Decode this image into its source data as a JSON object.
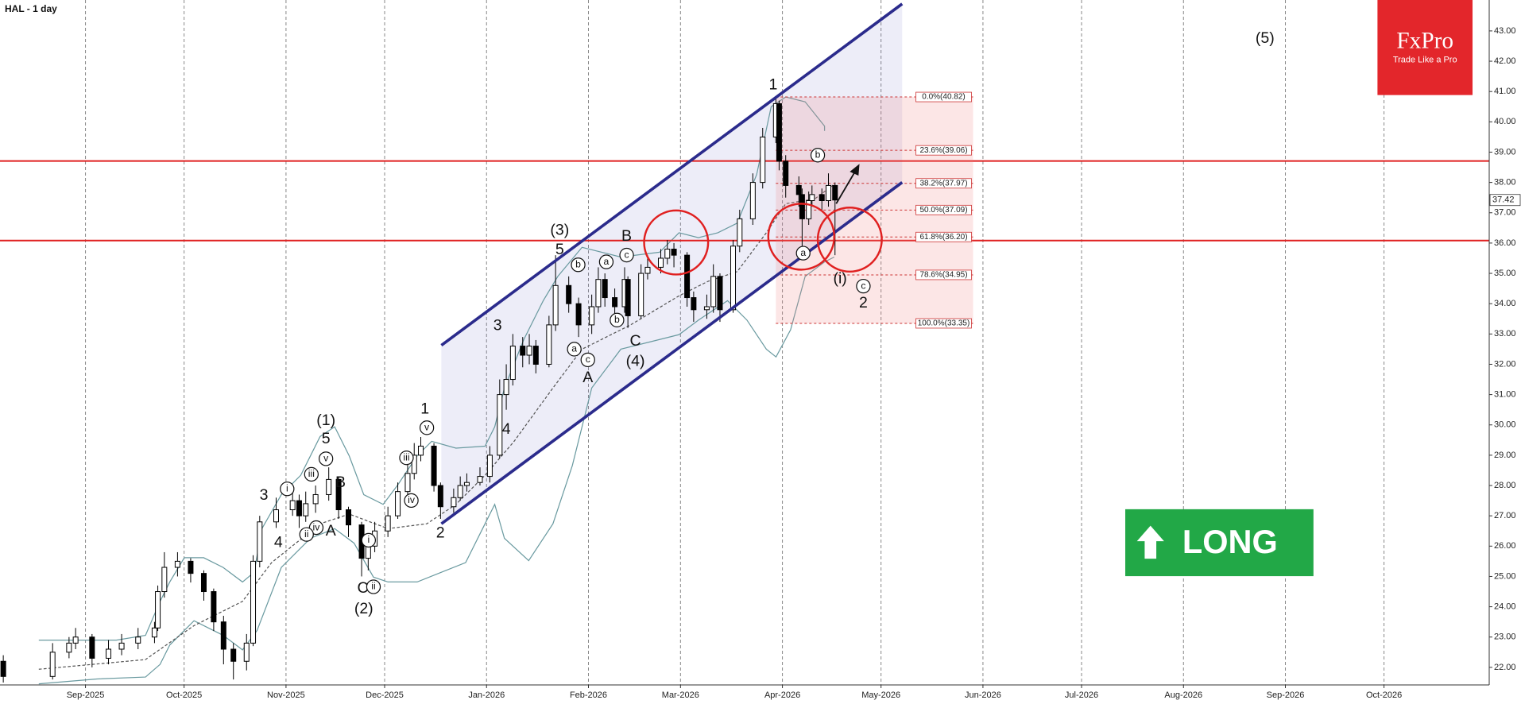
{
  "chart_data": {
    "type": "candlestick",
    "title": "HAL - 1 day",
    "x": [
      "2025-08-07",
      "2025-08-22",
      "2025-08-27",
      "2025-08-29",
      "2025-09-03",
      "2025-09-08",
      "2025-09-12",
      "2025-09-17",
      "2025-09-22",
      "2025-09-23",
      "2025-09-25",
      "2025-09-29",
      "2025-10-03",
      "2025-10-07",
      "2025-10-10",
      "2025-10-13",
      "2025-10-16",
      "2025-10-20",
      "2025-10-22",
      "2025-10-24",
      "2025-10-29",
      "2025-11-03",
      "2025-11-05",
      "2025-11-07",
      "2025-11-10",
      "2025-11-14",
      "2025-11-17",
      "2025-11-20",
      "2025-11-24",
      "2025-11-26",
      "2025-11-28",
      "2025-12-02",
      "2025-12-05",
      "2025-12-08",
      "2025-12-10",
      "2025-12-12",
      "2025-12-16",
      "2025-12-18",
      "2025-12-22",
      "2025-12-24",
      "2025-12-26",
      "2025-12-30",
      "2026-01-02",
      "2026-01-05",
      "2026-01-07",
      "2026-01-09",
      "2026-01-12",
      "2026-01-14",
      "2026-01-16",
      "2026-01-20",
      "2026-01-22",
      "2026-01-26",
      "2026-01-29",
      "2026-02-02",
      "2026-02-04",
      "2026-02-06",
      "2026-02-09",
      "2026-02-12",
      "2026-02-13",
      "2026-02-17",
      "2026-02-19",
      "2026-02-23",
      "2026-02-25",
      "2026-02-27",
      "2026-03-03",
      "2026-03-05",
      "2026-03-09",
      "2026-03-11",
      "2026-03-13",
      "2026-03-17",
      "2026-03-19",
      "2026-03-23",
      "2026-03-26",
      "2026-03-30",
      "2026-03-31",
      "2026-04-02",
      "2026-04-06",
      "2026-04-07",
      "2026-04-09",
      "2026-04-10",
      "2026-04-13",
      "2026-04-15",
      "2026-04-17"
    ],
    "open": [
      22.2,
      21.7,
      22.5,
      22.8,
      23.0,
      22.3,
      22.6,
      22.8,
      23.0,
      23.3,
      24.5,
      25.3,
      25.5,
      25.1,
      24.5,
      23.5,
      22.6,
      22.2,
      22.8,
      25.5,
      26.8,
      27.2,
      27.5,
      27.0,
      27.4,
      27.7,
      28.2,
      27.2,
      26.7,
      25.6,
      26.0,
      26.5,
      27.0,
      27.8,
      28.4,
      29.0,
      29.3,
      28.0,
      27.3,
      27.6,
      28.0,
      28.1,
      28.3,
      29.0,
      31.0,
      31.5,
      32.6,
      32.3,
      32.6,
      32.0,
      33.3,
      34.6,
      34.0,
      33.3,
      33.9,
      34.8,
      34.2,
      33.9,
      34.8,
      33.6,
      35.0,
      35.2,
      35.5,
      35.8,
      35.6,
      34.2,
      33.8,
      33.9,
      34.9,
      33.8,
      35.9,
      36.8,
      38.0,
      39.5,
      40.6,
      38.7,
      37.9,
      37.6,
      36.8,
      37.4,
      37.6,
      37.4,
      37.9
    ],
    "high": [
      22.4,
      22.8,
      23.0,
      23.3,
      23.1,
      22.9,
      23.1,
      23.3,
      23.5,
      24.7,
      25.8,
      25.8,
      25.6,
      25.2,
      24.6,
      23.7,
      22.8,
      23.1,
      25.7,
      27.0,
      27.6,
      28.0,
      27.7,
      27.8,
      28.0,
      28.6,
      28.3,
      27.3,
      26.8,
      26.3,
      26.8,
      27.3,
      28.1,
      28.7,
      29.4,
      29.6,
      29.4,
      28.1,
      27.9,
      28.3,
      28.4,
      28.6,
      29.3,
      31.5,
      32.0,
      33.0,
      32.9,
      33.0,
      32.8,
      33.6,
      35.6,
      34.9,
      34.2,
      34.3,
      35.2,
      35.0,
      34.5,
      35.2,
      34.9,
      35.3,
      35.6,
      35.8,
      36.1,
      36.0,
      35.7,
      34.4,
      34.3,
      35.3,
      35.0,
      36.1,
      37.1,
      38.3,
      39.8,
      40.82,
      40.7,
      38.9,
      38.2,
      37.8,
      37.7,
      37.9,
      37.8,
      38.3,
      38.0
    ],
    "low": [
      21.5,
      21.6,
      22.3,
      22.6,
      22.0,
      22.1,
      22.4,
      22.6,
      22.8,
      23.2,
      24.3,
      25.0,
      24.8,
      24.2,
      23.2,
      22.1,
      21.6,
      21.9,
      22.7,
      25.3,
      26.6,
      27.0,
      26.6,
      26.8,
      27.1,
      27.5,
      26.9,
      26.3,
      25.0,
      25.2,
      25.8,
      26.3,
      26.9,
      27.6,
      28.2,
      28.8,
      27.8,
      26.9,
      27.1,
      27.5,
      27.8,
      28.0,
      28.1,
      28.9,
      30.5,
      31.3,
      31.9,
      32.0,
      31.7,
      31.9,
      33.1,
      33.7,
      32.9,
      33.0,
      33.7,
      33.9,
      33.5,
      33.7,
      33.2,
      33.5,
      34.8,
      35.0,
      35.3,
      35.2,
      33.9,
      33.4,
      33.5,
      33.7,
      33.4,
      33.7,
      35.7,
      36.6,
      37.8,
      39.3,
      38.4,
      37.5,
      37.2,
      35.9,
      36.6,
      37.2,
      37.1,
      37.2,
      35.6
    ],
    "close": [
      21.7,
      22.5,
      22.8,
      23.0,
      22.3,
      22.6,
      22.8,
      23.0,
      23.3,
      24.5,
      25.3,
      25.5,
      25.1,
      24.5,
      23.5,
      22.6,
      22.2,
      22.8,
      25.5,
      26.8,
      27.2,
      27.5,
      27.0,
      27.4,
      27.7,
      28.2,
      27.2,
      26.7,
      25.6,
      26.0,
      26.5,
      27.0,
      27.8,
      28.4,
      29.0,
      29.3,
      28.0,
      27.3,
      27.6,
      28.0,
      28.1,
      28.3,
      29.0,
      31.0,
      31.5,
      32.6,
      32.3,
      32.6,
      32.0,
      33.3,
      34.6,
      34.0,
      33.3,
      33.9,
      34.8,
      34.2,
      33.9,
      34.8,
      33.6,
      35.0,
      35.2,
      35.5,
      35.8,
      35.6,
      34.2,
      33.8,
      33.9,
      34.9,
      33.8,
      35.9,
      36.8,
      38.0,
      39.5,
      40.6,
      38.7,
      37.9,
      37.6,
      36.8,
      37.4,
      37.6,
      37.4,
      37.9,
      37.42
    ],
    "color_up": "#ffffff",
    "color_down": "#000000",
    "ylim": [
      21.42,
      44.02
    ],
    "yticks": [
      {
        "value": 22,
        "label": "22.00"
      },
      {
        "value": 23,
        "label": "23.00"
      },
      {
        "value": 24,
        "label": "24.00"
      },
      {
        "value": 25,
        "label": "25.00"
      },
      {
        "value": 26,
        "label": "26.00"
      },
      {
        "value": 27,
        "label": "27.00"
      },
      {
        "value": 28,
        "label": "28.00"
      },
      {
        "value": 29,
        "label": "29.00"
      },
      {
        "value": 30,
        "label": "30.00"
      },
      {
        "value": 31,
        "label": "31.00"
      },
      {
        "value": 32,
        "label": "32.00"
      },
      {
        "value": 33,
        "label": "33.00"
      },
      {
        "value": 34,
        "label": "34.00"
      },
      {
        "value": 35,
        "label": "35.00"
      },
      {
        "value": 36,
        "label": "36.00"
      },
      {
        "value": 37,
        "label": "37.00"
      },
      {
        "value": 38,
        "label": "38.00"
      },
      {
        "value": 39,
        "label": "39.00"
      },
      {
        "value": 40,
        "label": "40.00"
      },
      {
        "value": 41,
        "label": "41.00"
      },
      {
        "value": 42,
        "label": "42.00"
      },
      {
        "value": 43,
        "label": "43.00"
      }
    ],
    "xlim": [
      "2025-08-06",
      "2026-11-02"
    ],
    "xticks": [
      {
        "value": "2025-09-01",
        "label": "Sep-2025"
      },
      {
        "value": "2025-10-01",
        "label": "Oct-2025"
      },
      {
        "value": "2025-11-01",
        "label": "Nov-2025"
      },
      {
        "value": "2025-12-01",
        "label": "Dec-2025"
      },
      {
        "value": "2026-01-01",
        "label": "Jan-2026"
      },
      {
        "value": "2026-02-01",
        "label": "Feb-2026"
      },
      {
        "value": "2026-03-01",
        "label": "Mar-2026"
      },
      {
        "value": "2026-04-01",
        "label": "Apr-2026"
      },
      {
        "value": "2026-05-01",
        "label": "May-2026"
      },
      {
        "value": "2026-06-01",
        "label": "Jun-2026"
      },
      {
        "value": "2026-07-01",
        "label": "Jul-2026"
      },
      {
        "value": "2026-08-01",
        "label": "Aug-2026"
      },
      {
        "value": "2026-09-01",
        "label": "Sep-2026"
      },
      {
        "value": "2026-10-01",
        "label": "Oct-2026"
      }
    ],
    "grid": true,
    "last_price": 37.42,
    "fibonacci": {
      "start": "2026-03-30",
      "end": "2026-05-29",
      "levels": [
        {
          "value": 40.82,
          "label": "0.0%(40.82)"
        },
        {
          "value": 39.06,
          "label": "23.6%(39.06)"
        },
        {
          "value": 37.97,
          "label": "38.2%(37.97)"
        },
        {
          "value": 37.09,
          "label": "50.0%(37.09)"
        },
        {
          "value": 36.2,
          "label": "61.8%(36.20)"
        },
        {
          "value": 34.95,
          "label": "78.6%(34.95)"
        },
        {
          "value": 33.35,
          "label": "100.0%(33.35)"
        }
      ]
    },
    "annotations": [
      "(5)",
      "1",
      "(3)",
      "5",
      "B",
      "b",
      "a",
      "c",
      "a",
      "c",
      "A",
      "b",
      "C",
      "(4)",
      "3",
      "4",
      "1",
      "v",
      "iii",
      "iv",
      "2",
      "(1)",
      "5",
      "v",
      "B",
      "iii",
      "i",
      "3",
      "iv",
      "ii",
      "A",
      "4",
      "i",
      "ii",
      "C",
      "(2)",
      "b",
      "a",
      "(i)",
      "c",
      "2"
    ]
  },
  "logo": {
    "name": "FxPro",
    "tagline": "Trade Like a Pro"
  },
  "signal": "LONG"
}
